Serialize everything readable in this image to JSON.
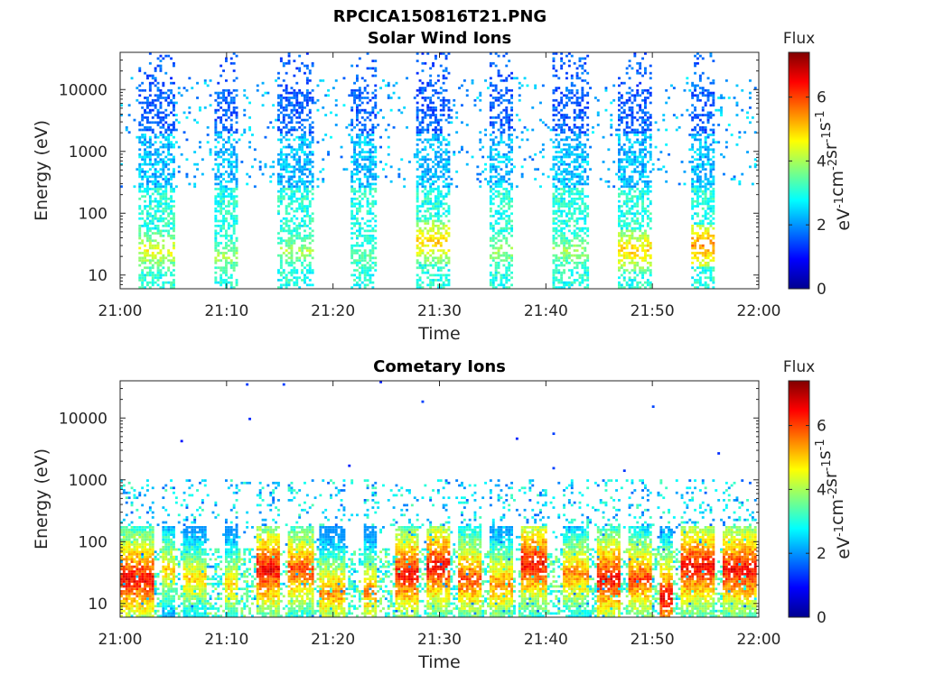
{
  "figure_title": "RPCICA150816T21.PNG",
  "chart_data": [
    {
      "type": "heatmap",
      "title": "Solar Wind Ions",
      "xlabel": "Time",
      "ylabel": "Energy (eV)",
      "y_scale": "log",
      "ylim": [
        6,
        40000
      ],
      "x_range": [
        "21:00",
        "22:00"
      ],
      "xticks": [
        "21:00",
        "21:10",
        "21:20",
        "21:30",
        "21:40",
        "21:50",
        "22:00"
      ],
      "yticks": [
        "10",
        "100",
        "1000",
        "10000"
      ],
      "colorbar": {
        "title": "Flux",
        "unit": "eV-1cm-2sr-1s-1",
        "range": [
          0,
          7.4
        ],
        "ticks": [
          "0",
          "2",
          "4",
          "6"
        ],
        "colormap": "jet"
      },
      "bursts": [
        {
          "start": "21:02",
          "end": "21:05",
          "peak_energy_eV": 25,
          "peak_flux": 4.5
        },
        {
          "start": "21:09",
          "end": "21:11",
          "peak_energy_eV": 20,
          "peak_flux": 4.0
        },
        {
          "start": "21:15",
          "end": "21:18",
          "peak_energy_eV": 25,
          "peak_flux": 4.0
        },
        {
          "start": "21:22",
          "end": "21:24",
          "peak_energy_eV": 20,
          "peak_flux": 3.5
        },
        {
          "start": "21:28",
          "end": "21:31",
          "peak_energy_eV": 35,
          "peak_flux": 5.0
        },
        {
          "start": "21:35",
          "end": "21:37",
          "peak_energy_eV": 25,
          "peak_flux": 4.0
        },
        {
          "start": "21:41",
          "end": "21:44",
          "peak_energy_eV": 25,
          "peak_flux": 4.0
        },
        {
          "start": "21:47",
          "end": "21:50",
          "peak_energy_eV": 25,
          "peak_flux": 5.0
        },
        {
          "start": "21:54",
          "end": "21:56",
          "peak_energy_eV": 30,
          "peak_flux": 5.5
        }
      ]
    },
    {
      "type": "heatmap",
      "title": "Cometary Ions",
      "xlabel": "Time",
      "ylabel": "Energy (eV)",
      "y_scale": "log",
      "ylim": [
        6,
        40000
      ],
      "x_range": [
        "21:00",
        "22:00"
      ],
      "xticks": [
        "21:00",
        "21:10",
        "21:20",
        "21:30",
        "21:40",
        "21:50",
        "22:00"
      ],
      "yticks": [
        "10",
        "100",
        "1000",
        "10000"
      ],
      "colorbar": {
        "title": "Flux",
        "unit": "eV-1cm-2sr-1s-1",
        "range": [
          0,
          7.4
        ],
        "ticks": [
          "0",
          "2",
          "4",
          "6"
        ],
        "colormap": "jet"
      },
      "bursts": [
        {
          "start": "21:00",
          "end": "21:03",
          "peak_energy_eV": 25,
          "peak_flux": 6.5
        },
        {
          "start": "21:04",
          "end": "21:05",
          "peak_energy_eV": 35,
          "peak_flux": 5.0
        },
        {
          "start": "21:06",
          "end": "21:08",
          "peak_energy_eV": 25,
          "peak_flux": 5.0
        },
        {
          "start": "21:10",
          "end": "21:11",
          "peak_energy_eV": 20,
          "peak_flux": 5.0
        },
        {
          "start": "21:13",
          "end": "21:15",
          "peak_energy_eV": 35,
          "peak_flux": 6.5
        },
        {
          "start": "21:16",
          "end": "21:18",
          "peak_energy_eV": 35,
          "peak_flux": 6.0
        },
        {
          "start": "21:19",
          "end": "21:21",
          "peak_energy_eV": 15,
          "peak_flux": 5.5
        },
        {
          "start": "21:23",
          "end": "21:24",
          "peak_energy_eV": 15,
          "peak_flux": 5.5
        },
        {
          "start": "21:26",
          "end": "21:28",
          "peak_energy_eV": 30,
          "peak_flux": 6.5
        },
        {
          "start": "21:29",
          "end": "21:31",
          "peak_energy_eV": 40,
          "peak_flux": 6.5
        },
        {
          "start": "21:32",
          "end": "21:34",
          "peak_energy_eV": 25,
          "peak_flux": 6.0
        },
        {
          "start": "21:35",
          "end": "21:37",
          "peak_energy_eV": 20,
          "peak_flux": 5.5
        },
        {
          "start": "21:38",
          "end": "21:40",
          "peak_energy_eV": 45,
          "peak_flux": 6.5
        },
        {
          "start": "21:42",
          "end": "21:44",
          "peak_energy_eV": 30,
          "peak_flux": 5.5
        },
        {
          "start": "21:45",
          "end": "21:47",
          "peak_energy_eV": 25,
          "peak_flux": 6.5
        },
        {
          "start": "21:48",
          "end": "21:50",
          "peak_energy_eV": 25,
          "peak_flux": 6.0
        },
        {
          "start": "21:51",
          "end": "21:52",
          "peak_energy_eV": 12,
          "peak_flux": 6.5
        },
        {
          "start": "21:53",
          "end": "21:56",
          "peak_energy_eV": 40,
          "peak_flux": 6.5
        },
        {
          "start": "21:57",
          "end": "22:00",
          "peak_energy_eV": 35,
          "peak_flux": 6.5
        }
      ]
    }
  ]
}
